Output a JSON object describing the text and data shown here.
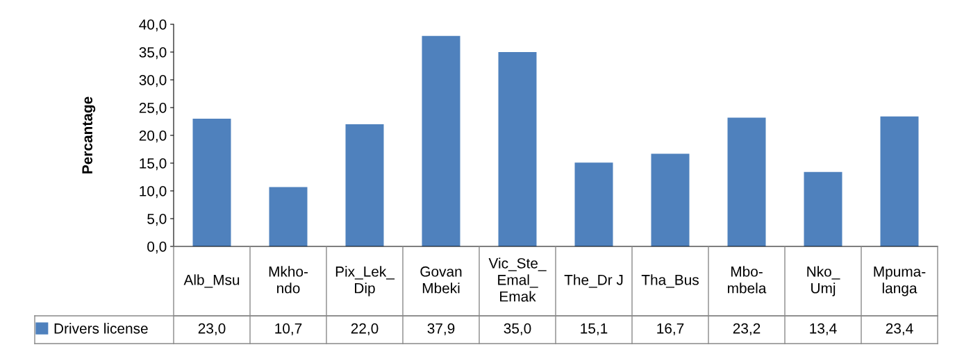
{
  "chart_data": {
    "type": "bar",
    "ylabel": "Percantage",
    "categories": [
      "Alb_Msu",
      "Mkho-\nndo",
      "Pix_Lek_\nDip",
      "Govan\nMbeki",
      "Vic_Ste_\nEmal_\nEmak",
      "The_Dr J",
      "Tha_Bus",
      "Mbo-\nmbela",
      "Nko_\nUmj",
      "Mpuma-\nlanga"
    ],
    "series": [
      {
        "name": "Drivers license",
        "color": "#4f81bd",
        "values": [
          23.0,
          10.7,
          22.0,
          37.9,
          35.0,
          15.1,
          16.7,
          23.2,
          13.4,
          23.4
        ],
        "value_labels": [
          "23,0",
          "10,7",
          "22,0",
          "37,9",
          "35,0",
          "15,1",
          "16,7",
          "23,2",
          "13,4",
          "23,4"
        ]
      }
    ],
    "ylim": [
      0,
      40
    ],
    "yticks": [
      {
        "value": 0,
        "label": "0,0"
      },
      {
        "value": 5,
        "label": "5,0"
      },
      {
        "value": 10,
        "label": "10,0"
      },
      {
        "value": 15,
        "label": "15,0"
      },
      {
        "value": 20,
        "label": "20,0"
      },
      {
        "value": 25,
        "label": "25,0"
      },
      {
        "value": 30,
        "label": "30,0"
      },
      {
        "value": 35,
        "label": "35,0"
      },
      {
        "value": 40,
        "label": "40,0"
      }
    ],
    "legend": "bottom left"
  }
}
